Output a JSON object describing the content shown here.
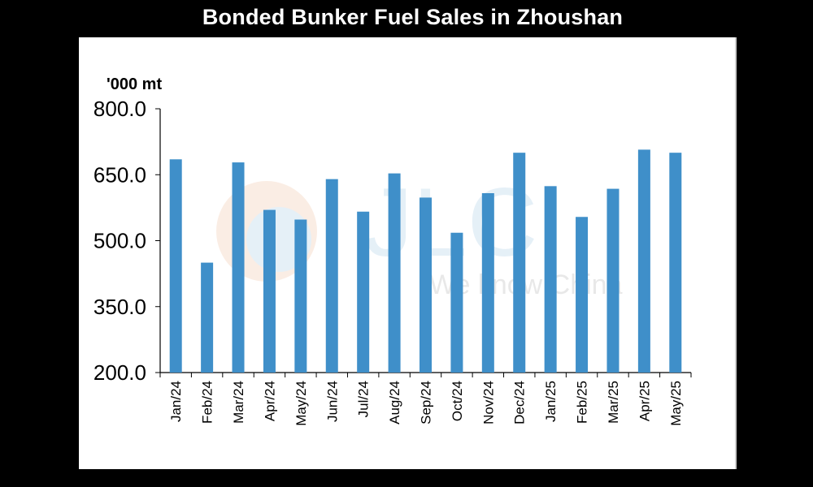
{
  "chart_data": {
    "type": "bar",
    "title": "Bonded Bunker Fuel Sales in Zhoushan",
    "ylabel": "'000 mt",
    "xlabel": "",
    "categories": [
      "Jan/24",
      "Feb/24",
      "Mar/24",
      "Apr/24",
      "May/24",
      "Jun/24",
      "Jul/24",
      "Aug/24",
      "Sep/24",
      "Oct/24",
      "Nov/24",
      "Dec/24",
      "Jan/25",
      "Feb/25",
      "Mar/25",
      "Apr/25",
      "May/25"
    ],
    "values": [
      685,
      450,
      678,
      570,
      548,
      640,
      566,
      653,
      598,
      518,
      608,
      700,
      624,
      554,
      618,
      707,
      700
    ],
    "ylim": [
      200,
      800
    ],
    "yticks": [
      "800.0",
      "650.0",
      "500.0",
      "350.0",
      "200.0"
    ],
    "ytick_values": [
      800,
      650,
      500,
      350,
      200
    ],
    "bar_color": "#3f8fc9",
    "grid": false,
    "legend": "none"
  },
  "watermark": {
    "logo_text": "JLC",
    "tagline": "We know China"
  }
}
